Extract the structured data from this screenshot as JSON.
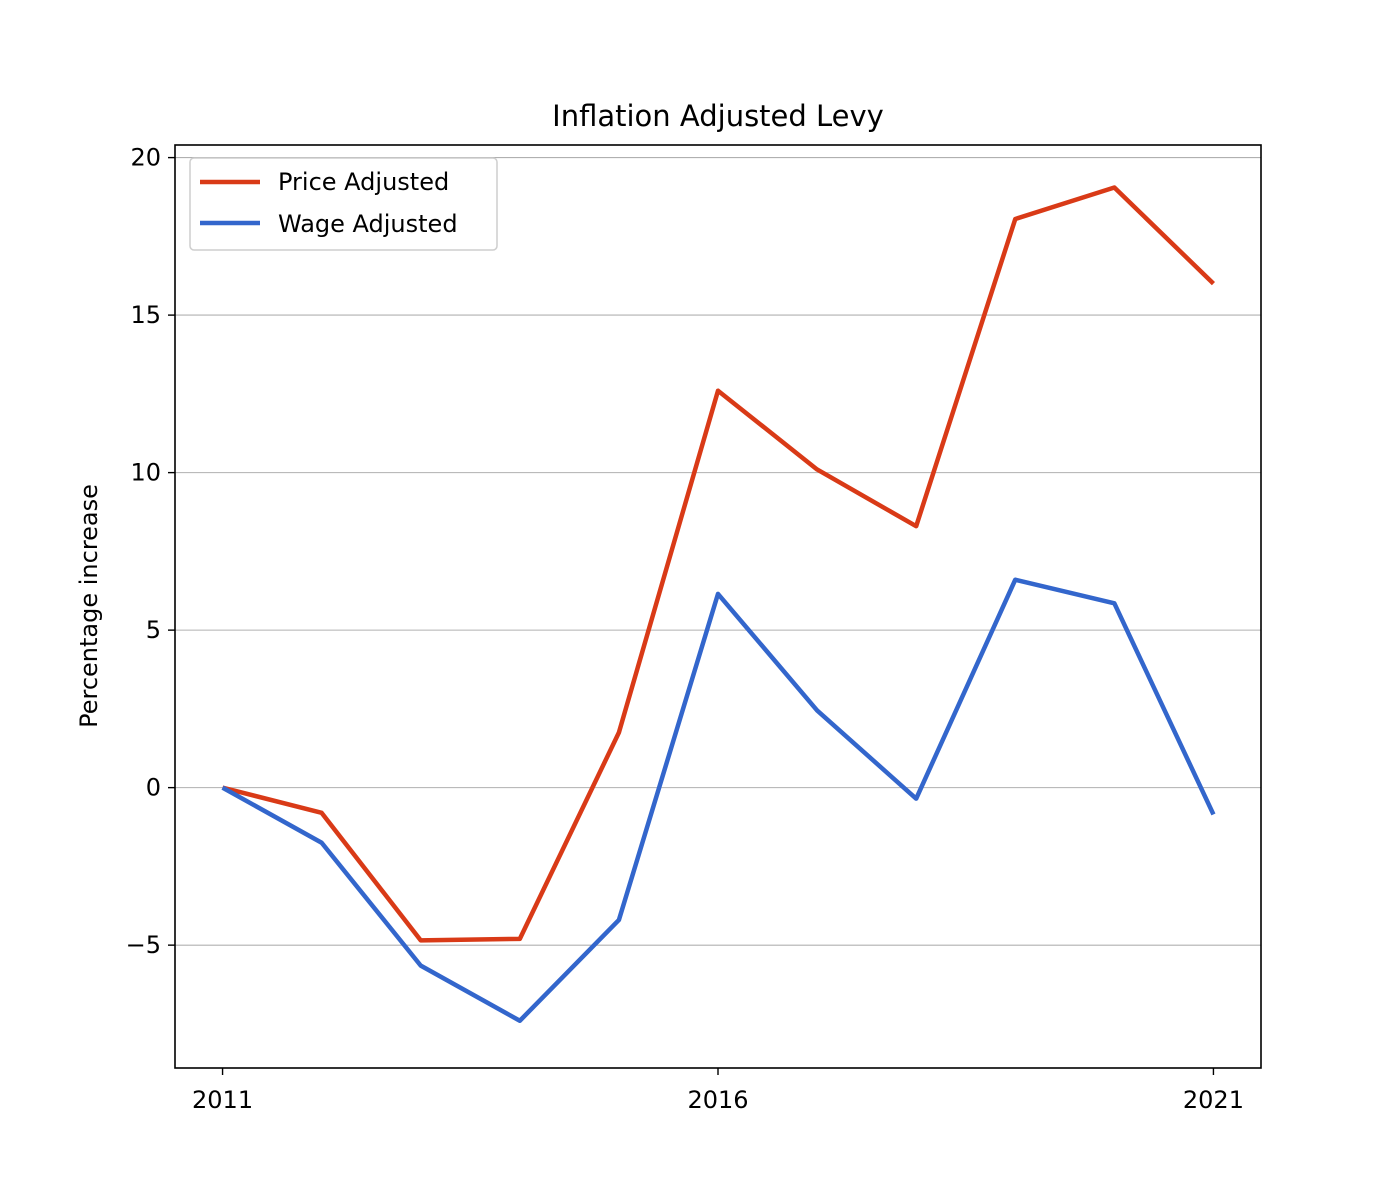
{
  "chart_data": {
    "type": "line",
    "title": "Inflation Adjusted Levy",
    "xlabel": "",
    "ylabel": "Percentage increase",
    "x": [
      2011,
      2012,
      2013,
      2014,
      2015,
      2016,
      2017,
      2018,
      2019,
      2020,
      2021
    ],
    "xlim": [
      2010.52,
      2021.48
    ],
    "ylim": [
      -8.9,
      20.4
    ],
    "x_ticks": [
      2011,
      2016,
      2021
    ],
    "x_tick_labels": [
      "2011",
      "2016",
      "2021"
    ],
    "y_ticks": [
      -5,
      0,
      5,
      10,
      15,
      20
    ],
    "y_tick_labels": [
      "−5",
      "0",
      "5",
      "10",
      "15",
      "20"
    ],
    "grid": "horizontal",
    "legend": "upper-left",
    "series": [
      {
        "name": "Price Adjusted",
        "color": "#d93a17",
        "values": [
          0,
          -0.8,
          -4.85,
          -4.8,
          1.75,
          12.6,
          10.1,
          8.3,
          18.05,
          19.05,
          16.0
        ]
      },
      {
        "name": "Wage Adjusted",
        "color": "#3366cc",
        "values": [
          0,
          -1.75,
          -5.65,
          -7.4,
          -4.2,
          6.15,
          2.45,
          -0.35,
          6.6,
          5.85,
          -0.85
        ]
      }
    ]
  }
}
